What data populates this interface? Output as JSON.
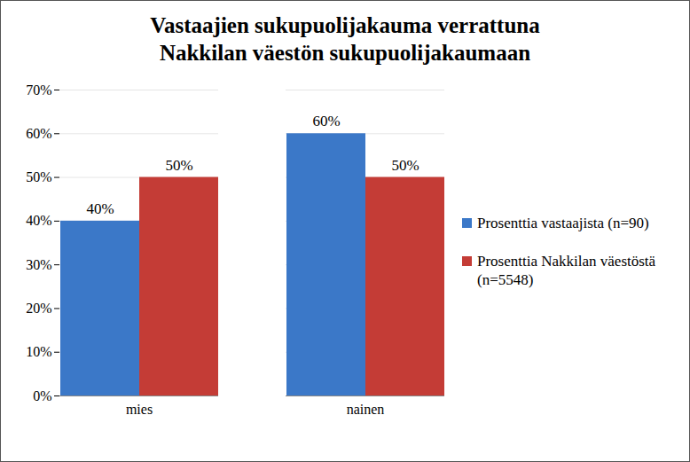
{
  "chart_data": {
    "type": "bar",
    "title": "Vastaajien sukupuolijakauma verrattuna\nNakkilan väestön sukupuolijakaumaan",
    "categories": [
      "mies",
      "nainen"
    ],
    "series": [
      {
        "name": "Prosenttia vastaajista (n=90)",
        "color": "#3b78c8",
        "values": [
          40,
          60
        ],
        "value_labels": [
          "40%",
          "60%"
        ]
      },
      {
        "name": "Prosenttia Nakkilan väestöstä (n=5548)",
        "color": "#c43c36",
        "values": [
          50,
          50
        ],
        "value_labels": [
          "50%",
          "50%"
        ]
      }
    ],
    "ylim": [
      0,
      70
    ],
    "yticks": [
      {
        "value": 0,
        "label": "0%"
      },
      {
        "value": 10,
        "label": "10%"
      },
      {
        "value": 20,
        "label": "20%"
      },
      {
        "value": 30,
        "label": "30%"
      },
      {
        "value": 40,
        "label": "40%"
      },
      {
        "value": 50,
        "label": "50%"
      },
      {
        "value": 60,
        "label": "60%"
      },
      {
        "value": 70,
        "label": "70%"
      }
    ],
    "grid": true,
    "legend": "right",
    "data_labels": true
  }
}
